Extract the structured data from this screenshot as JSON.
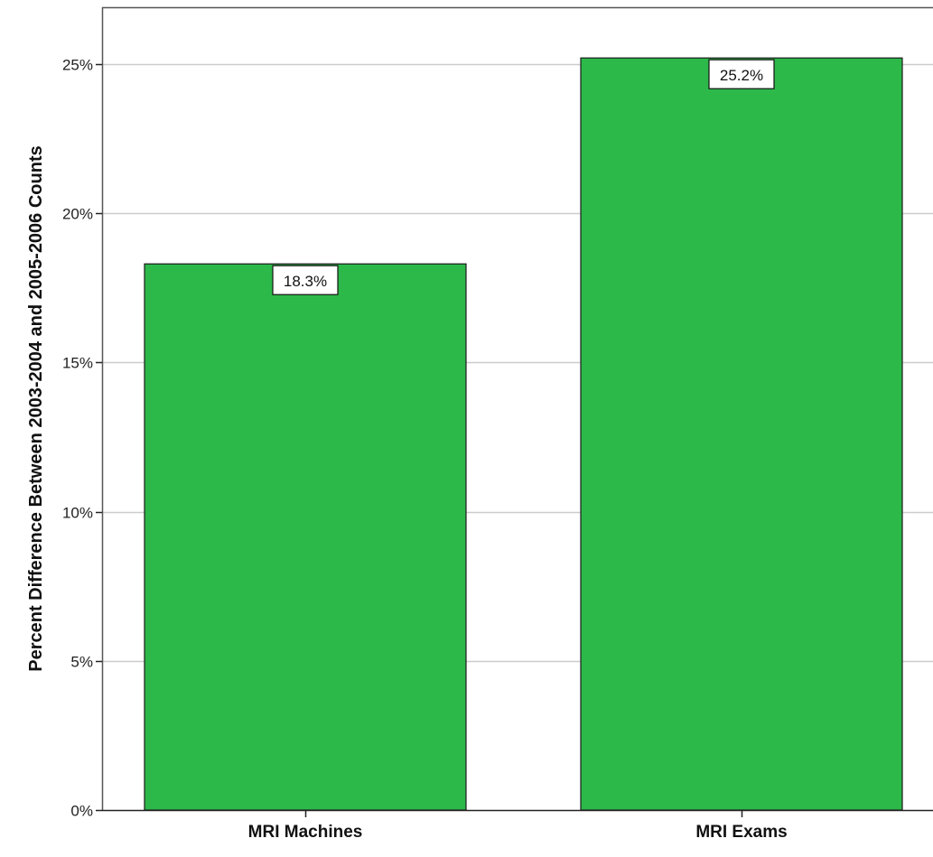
{
  "chart_data": {
    "type": "bar",
    "title": "",
    "xlabel": "",
    "ylabel": "Percent Difference Between 2003-2004 and 2005-2006 Counts",
    "categories": [
      "MRI Machines",
      "MRI Exams"
    ],
    "values": [
      18.3,
      25.2
    ],
    "value_labels": [
      "18.3%",
      "25.2%"
    ],
    "ylim": [
      0,
      26.9
    ],
    "yticks": [
      0,
      5,
      10,
      15,
      20,
      25
    ],
    "ytick_labels": [
      "0%",
      "5%",
      "10%",
      "15%",
      "20%",
      "25%"
    ],
    "grid": true,
    "legend": "none",
    "colors": {
      "bar_fill": "#2db84a",
      "bar_stroke": "#1a1a1a",
      "gridline": "#cccccc",
      "axis": "#555555"
    }
  }
}
